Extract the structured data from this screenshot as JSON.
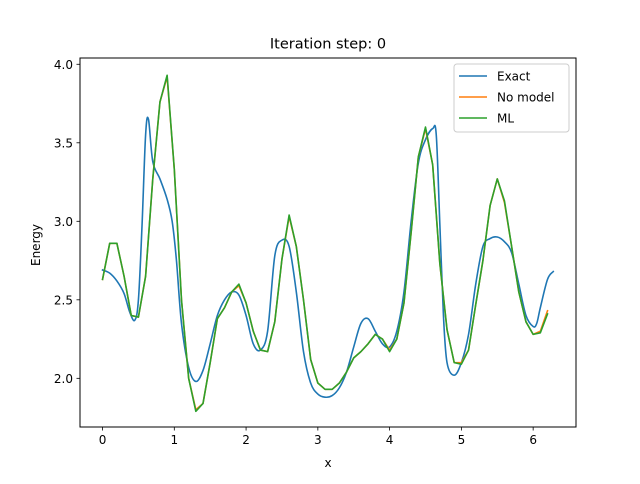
{
  "chart_data": {
    "type": "line",
    "title": "Iteration step: 0",
    "xlabel": "x",
    "ylabel": "Energy",
    "xlim": [
      -0.314,
      6.597
    ],
    "ylim": [
      1.69,
      4.04
    ],
    "xticks": [
      0,
      1,
      2,
      3,
      4,
      5,
      6
    ],
    "xtick_labels": [
      "0",
      "1",
      "2",
      "3",
      "4",
      "5",
      "6"
    ],
    "yticks": [
      2.0,
      2.5,
      3.0,
      3.5,
      4.0
    ],
    "ytick_labels": [
      "2.0",
      "2.5",
      "3.0",
      "3.5",
      "4.0"
    ],
    "legend_position": "top-right",
    "series": [
      {
        "name": "Exact",
        "color": "#1f77b4",
        "x": [
          0.0,
          0.1,
          0.2,
          0.3,
          0.38,
          0.45,
          0.5,
          0.55,
          0.6,
          0.64,
          0.7,
          0.8,
          0.9,
          0.97,
          1.03,
          1.1,
          1.2,
          1.3,
          1.4,
          1.5,
          1.6,
          1.7,
          1.8,
          1.9,
          2.0,
          2.1,
          2.2,
          2.3,
          2.4,
          2.5,
          2.6,
          2.7,
          2.8,
          2.9,
          3.0,
          3.1,
          3.2,
          3.3,
          3.4,
          3.5,
          3.6,
          3.7,
          3.8,
          3.9,
          4.0,
          4.1,
          4.2,
          4.3,
          4.4,
          4.5,
          4.6,
          4.65,
          4.7,
          4.75,
          4.8,
          4.9,
          5.0,
          5.1,
          5.2,
          5.3,
          5.4,
          5.5,
          5.6,
          5.7,
          5.8,
          5.9,
          6.0,
          6.05,
          6.1,
          6.2,
          6.28
        ],
        "y": [
          2.69,
          2.67,
          2.62,
          2.54,
          2.42,
          2.37,
          2.5,
          2.97,
          3.55,
          3.65,
          3.38,
          3.27,
          3.14,
          3.0,
          2.75,
          2.35,
          2.07,
          1.98,
          2.05,
          2.22,
          2.4,
          2.5,
          2.55,
          2.53,
          2.4,
          2.22,
          2.18,
          2.3,
          2.78,
          2.88,
          2.84,
          2.55,
          2.17,
          1.97,
          1.9,
          1.88,
          1.89,
          1.94,
          2.04,
          2.2,
          2.35,
          2.38,
          2.3,
          2.22,
          2.2,
          2.3,
          2.55,
          3.0,
          3.37,
          3.52,
          3.59,
          3.55,
          2.98,
          2.4,
          2.1,
          2.02,
          2.1,
          2.28,
          2.6,
          2.84,
          2.89,
          2.9,
          2.87,
          2.8,
          2.6,
          2.4,
          2.33,
          2.35,
          2.45,
          2.63,
          2.68
        ]
      },
      {
        "name": "No model",
        "color": "#ff7f0e",
        "x": [
          0.0,
          0.1,
          0.2,
          0.3,
          0.4,
          0.5,
          0.6,
          0.7,
          0.8,
          0.9,
          1.0,
          1.1,
          1.2,
          1.3,
          1.4,
          1.5,
          1.6,
          1.7,
          1.8,
          1.9,
          2.0,
          2.1,
          2.2,
          2.3,
          2.4,
          2.5,
          2.6,
          2.7,
          2.8,
          2.9,
          3.0,
          3.1,
          3.2,
          3.3,
          3.4,
          3.5,
          3.6,
          3.7,
          3.8,
          3.9,
          4.0,
          4.1,
          4.2,
          4.3,
          4.4,
          4.5,
          4.6,
          4.7,
          4.8,
          4.9,
          5.0,
          5.1,
          5.2,
          5.3,
          5.4,
          5.5,
          5.6,
          5.7,
          5.8,
          5.9,
          6.0,
          6.1,
          6.2
        ],
        "y": [
          2.63,
          2.86,
          2.86,
          2.65,
          2.4,
          2.39,
          2.65,
          3.27,
          3.76,
          3.92,
          3.33,
          2.5,
          2.0,
          1.8,
          1.84,
          2.1,
          2.38,
          2.45,
          2.55,
          2.59,
          2.48,
          2.3,
          2.18,
          2.17,
          2.36,
          2.76,
          3.03,
          2.84,
          2.5,
          2.12,
          1.97,
          1.93,
          1.93,
          1.97,
          2.04,
          2.13,
          2.17,
          2.22,
          2.28,
          2.25,
          2.18,
          2.25,
          2.48,
          2.93,
          3.41,
          3.59,
          3.36,
          2.73,
          2.31,
          2.1,
          2.1,
          2.18,
          2.47,
          2.75,
          3.1,
          3.27,
          3.12,
          2.84,
          2.55,
          2.36,
          2.28,
          2.3,
          2.43
        ]
      },
      {
        "name": "ML",
        "color": "#2ca02c",
        "x": [
          0.0,
          0.1,
          0.2,
          0.3,
          0.4,
          0.5,
          0.6,
          0.7,
          0.8,
          0.9,
          1.0,
          1.1,
          1.2,
          1.3,
          1.4,
          1.5,
          1.6,
          1.7,
          1.8,
          1.9,
          2.0,
          2.1,
          2.2,
          2.3,
          2.4,
          2.5,
          2.6,
          2.7,
          2.8,
          2.9,
          3.0,
          3.1,
          3.2,
          3.3,
          3.4,
          3.5,
          3.6,
          3.7,
          3.8,
          3.9,
          4.0,
          4.1,
          4.2,
          4.3,
          4.4,
          4.5,
          4.6,
          4.7,
          4.8,
          4.9,
          5.0,
          5.1,
          5.2,
          5.3,
          5.4,
          5.5,
          5.6,
          5.7,
          5.8,
          5.9,
          6.0,
          6.1,
          6.2
        ],
        "y": [
          2.63,
          2.86,
          2.86,
          2.65,
          2.4,
          2.39,
          2.65,
          3.27,
          3.76,
          3.93,
          3.33,
          2.5,
          2.0,
          1.79,
          1.84,
          2.1,
          2.38,
          2.45,
          2.55,
          2.6,
          2.48,
          2.3,
          2.18,
          2.17,
          2.36,
          2.76,
          3.04,
          2.84,
          2.5,
          2.12,
          1.97,
          1.93,
          1.93,
          1.97,
          2.04,
          2.13,
          2.17,
          2.22,
          2.28,
          2.25,
          2.17,
          2.25,
          2.48,
          2.93,
          3.41,
          3.6,
          3.36,
          2.73,
          2.31,
          2.1,
          2.09,
          2.18,
          2.47,
          2.75,
          3.1,
          3.27,
          3.13,
          2.84,
          2.55,
          2.36,
          2.28,
          2.29,
          2.41
        ]
      }
    ]
  }
}
